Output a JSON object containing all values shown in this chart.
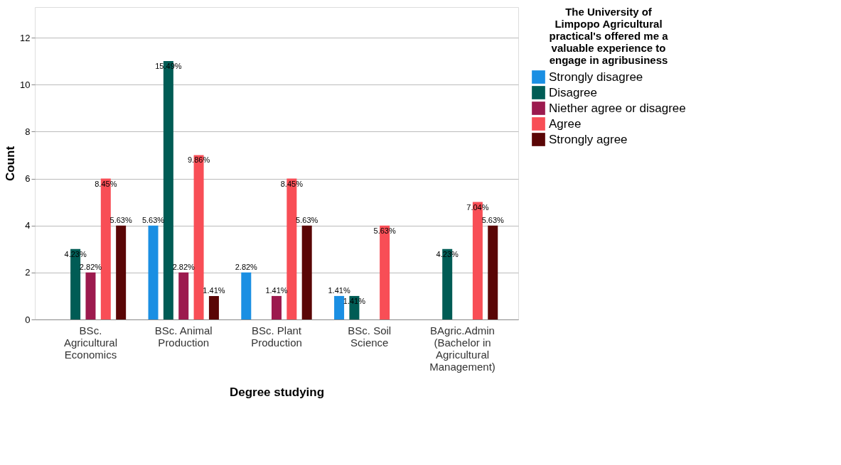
{
  "chart_data": {
    "type": "bar",
    "xlabel": "Degree studying",
    "ylabel": "Count",
    "legend_title": "The University of Limpopo Agricultural practical's offered me a valuable experience to engage in agribusiness",
    "categories": [
      "BSc. Agricultural Economics",
      "BSc. Animal Production",
      "BSc. Plant Production",
      "BSc. Soil Science",
      "BAgric.Admin (Bachelor in Agricultural Management)"
    ],
    "series": [
      {
        "name": "Strongly disagree",
        "color": "#1a8fe3",
        "values": [
          null,
          4,
          2,
          1,
          null
        ]
      },
      {
        "name": "Disagree",
        "color": "#005c55",
        "values": [
          3,
          11,
          null,
          1,
          3
        ]
      },
      {
        "name": "Niether agree or disagree",
        "color": "#9c1a4e",
        "values": [
          2,
          2,
          1,
          null,
          null
        ]
      },
      {
        "name": "Agree",
        "color": "#f84e56",
        "values": [
          6,
          7,
          6,
          4,
          5
        ]
      },
      {
        "name": "Strongly agree",
        "color": "#5a0606",
        "values": [
          4,
          1,
          4,
          null,
          4
        ]
      }
    ],
    "annotations": [
      "4.23%",
      "2.82%",
      "8.45%",
      "5.63%",
      "5.63%",
      "15.49%",
      "2.82%",
      "9.86%",
      "1.41%",
      "2.82%",
      "1.41%",
      "8.45%",
      "5.63%",
      "1.41%",
      "1.41%",
      "5.63%",
      "4.23%",
      "7.04%",
      "5.63%"
    ],
    "ylim": [
      0,
      13.3
    ],
    "yticks": [
      0,
      2,
      4,
      6,
      8,
      10,
      12
    ],
    "grid": "y",
    "legend": "right"
  }
}
